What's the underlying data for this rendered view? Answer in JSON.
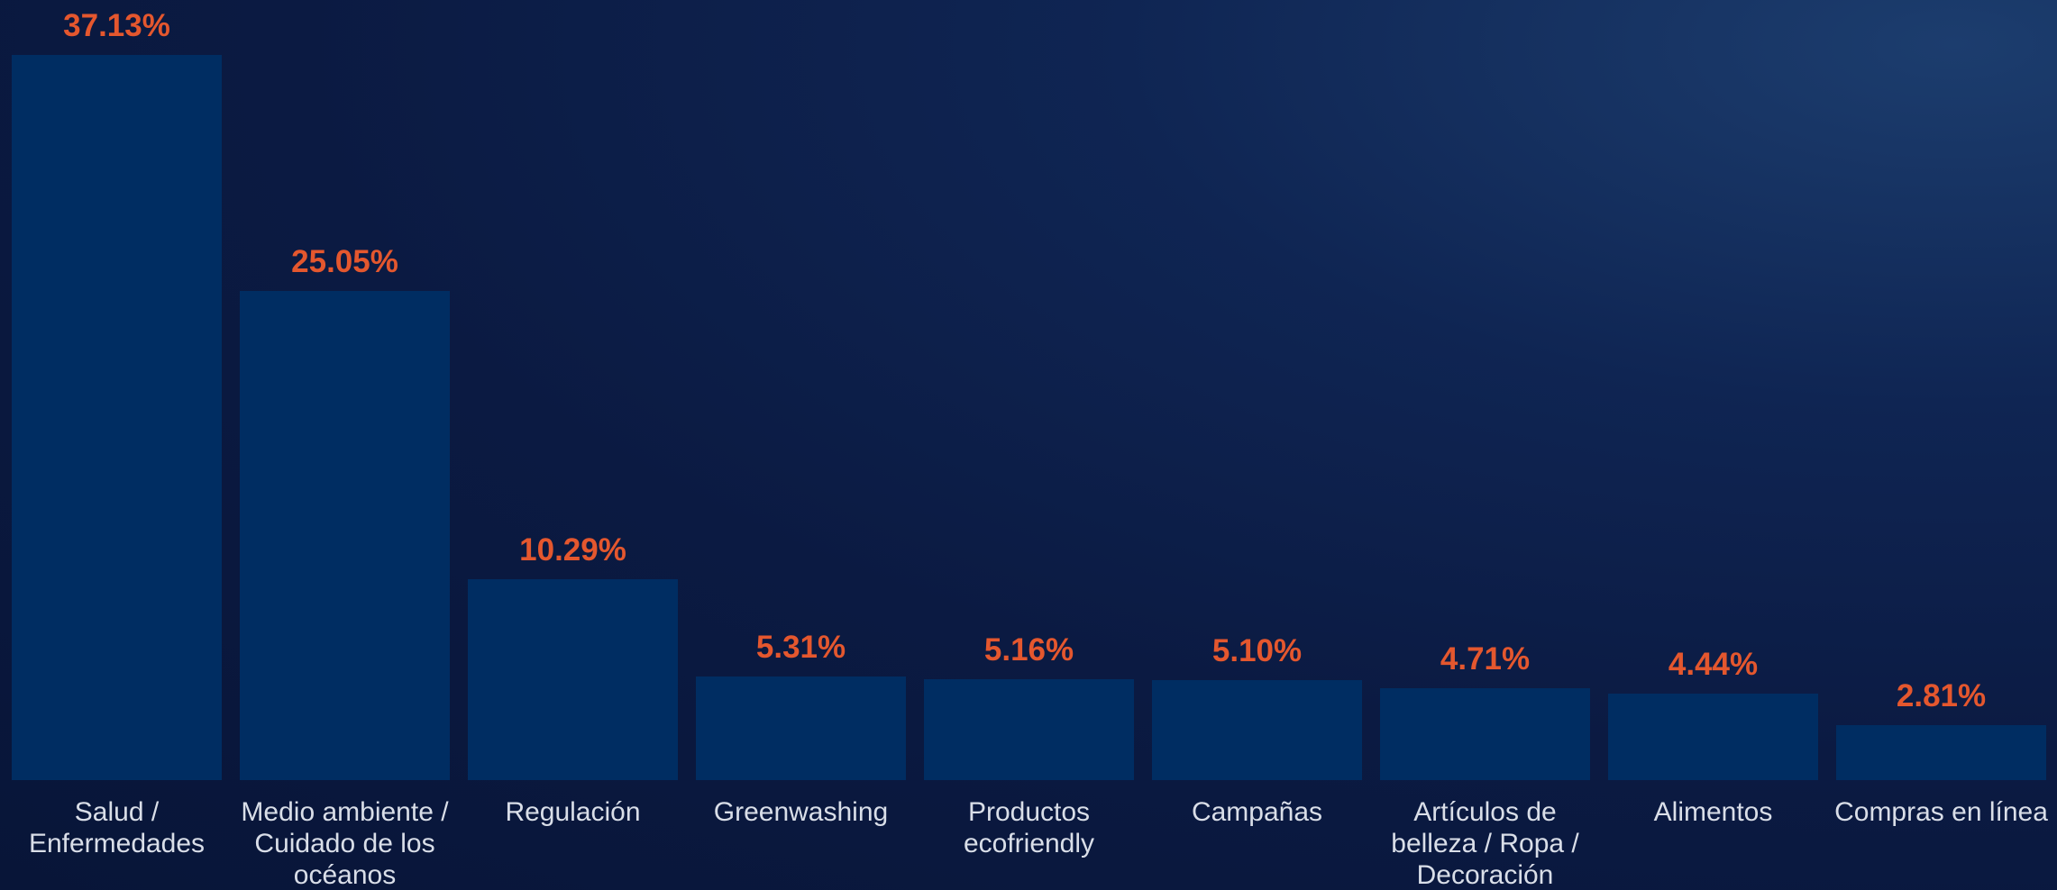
{
  "chart_data": {
    "type": "bar",
    "categories": [
      "Salud / Enfermedades",
      "Medio ambiente / Cuidado de los océanos",
      "Regulación",
      "Greenwashing",
      "Productos ecofriendly",
      "Campañas",
      "Artículos de belleza / Ropa / Decoración",
      "Alimentos",
      "Compras en línea"
    ],
    "values": [
      37.13,
      25.05,
      10.29,
      5.31,
      5.16,
      5.1,
      4.71,
      4.44,
      2.81
    ],
    "value_labels": [
      "37.13%",
      "25.05%",
      "10.29%",
      "5.31%",
      "5.16%",
      "5.10%",
      "4.71%",
      "4.44%",
      "2.81%"
    ],
    "color": "#002d62",
    "label_color": "#e4572e"
  }
}
